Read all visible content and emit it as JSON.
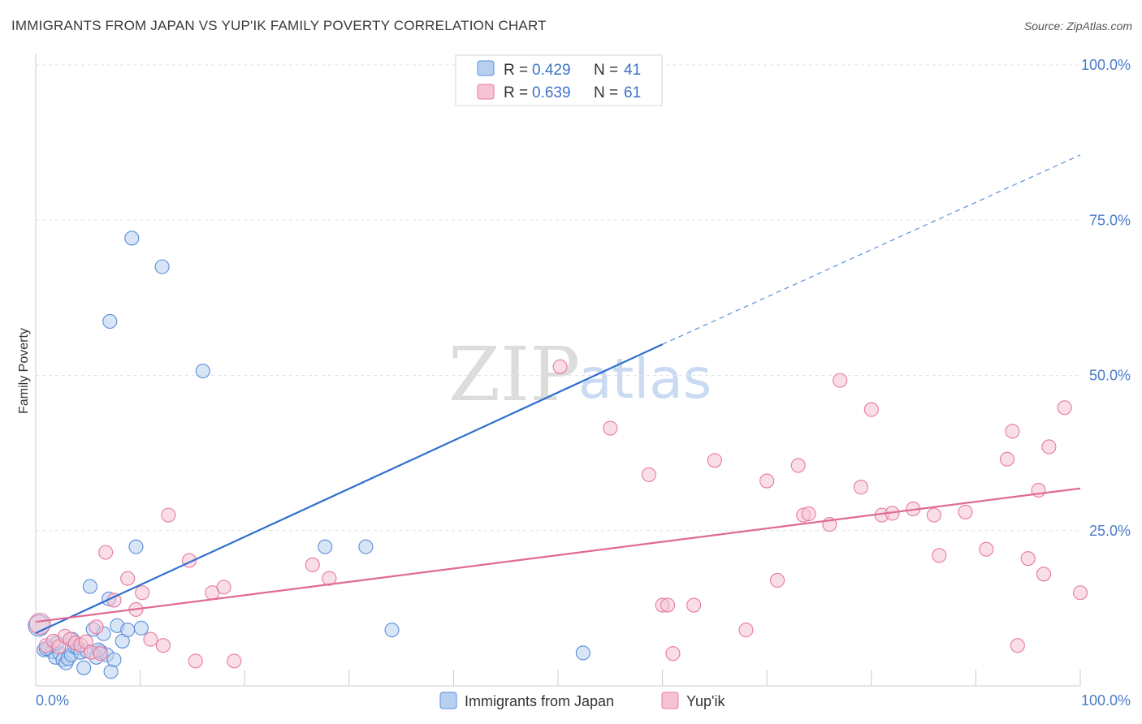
{
  "header": {
    "title": "IMMIGRANTS FROM JAPAN VS YUP'IK FAMILY POVERTY CORRELATION CHART",
    "source": "Source: ZipAtlas.com"
  },
  "watermark": {
    "zip": "ZIP",
    "atlas": "atlas"
  },
  "colors": {
    "japan": "#5b8ed8",
    "japan_fill": "#b8d0f0",
    "japan_line": "#2f6fce",
    "yupik": "#e7799e",
    "yupik_fill": "#f5c3d4",
    "yupik_line": "#e06a93",
    "tick": "#4a7cc9",
    "grid": "#e2e2e2"
  },
  "legend": {
    "rows": [
      {
        "r_label": "R = ",
        "r_value": "0.429",
        "n_label": "N = ",
        "n_value": "41"
      },
      {
        "r_label": "R = ",
        "r_value": "0.639",
        "n_label": "N = ",
        "n_value": "61"
      }
    ]
  },
  "chart_data": {
    "type": "scatter",
    "title": "IMMIGRANTS FROM JAPAN VS YUP'IK FAMILY POVERTY CORRELATION CHART",
    "xlabel": "",
    "ylabel": "Family Poverty",
    "xlim": [
      0,
      100
    ],
    "ylim": [
      0,
      100
    ],
    "x_ticks": [
      "0.0%",
      "100.0%"
    ],
    "y_ticks": [
      {
        "value": 25,
        "label": "25.0%"
      },
      {
        "value": 50,
        "label": "50.0%"
      },
      {
        "value": 75,
        "label": "75.0%"
      },
      {
        "value": 100,
        "label": "100.0%"
      }
    ],
    "grid": true,
    "legend_position": "top-center",
    "series": [
      {
        "name": "Immigrants from Japan",
        "stats": {
          "R": 0.429,
          "N": 41
        },
        "trend": {
          "x0": 0,
          "y0": 8.5,
          "x1": 60,
          "y1": 55,
          "dashed_to_x": 100,
          "dashed_to_y": 85.5
        },
        "points": [
          [
            0.3,
            9.7
          ],
          [
            0.8,
            5.8
          ],
          [
            1.2,
            6.1
          ],
          [
            1.6,
            5.5
          ],
          [
            1.9,
            4.6
          ],
          [
            2.3,
            5.2
          ],
          [
            2.6,
            4.2
          ],
          [
            2.9,
            3.7
          ],
          [
            3.1,
            4.4
          ],
          [
            3.4,
            5.0
          ],
          [
            3.7,
            6.3
          ],
          [
            4.0,
            6.1
          ],
          [
            4.3,
            5.4
          ],
          [
            4.6,
            2.9
          ],
          [
            4.9,
            5.6
          ],
          [
            5.2,
            16.0
          ],
          [
            5.5,
            9.1
          ],
          [
            5.8,
            4.6
          ],
          [
            6.2,
            5.5
          ],
          [
            6.5,
            8.4
          ],
          [
            6.8,
            5.0
          ],
          [
            7.0,
            14.0
          ],
          [
            7.2,
            2.3
          ],
          [
            7.5,
            4.2
          ],
          [
            7.1,
            58.7
          ],
          [
            7.8,
            9.7
          ],
          [
            8.3,
            7.2
          ],
          [
            8.8,
            9.0
          ],
          [
            9.2,
            72.1
          ],
          [
            9.6,
            22.4
          ],
          [
            10.1,
            9.3
          ],
          [
            12.1,
            67.5
          ],
          [
            16.0,
            50.7
          ],
          [
            27.7,
            22.4
          ],
          [
            31.6,
            22.4
          ],
          [
            34.1,
            9.0
          ],
          [
            52.4,
            5.3
          ],
          [
            1.0,
            6.0
          ],
          [
            2.0,
            6.9
          ],
          [
            3.5,
            7.5
          ],
          [
            6.0,
            5.8
          ]
        ]
      },
      {
        "name": "Yup'ik",
        "stats": {
          "R": 0.639,
          "N": 61
        },
        "trend": {
          "x0": 0,
          "y0": 10.3,
          "x1": 100,
          "y1": 31.8
        },
        "points": [
          [
            0.4,
            10.0
          ],
          [
            1.0,
            6.5
          ],
          [
            1.7,
            7.2
          ],
          [
            2.2,
            6.3
          ],
          [
            2.8,
            8.0
          ],
          [
            3.3,
            7.5
          ],
          [
            3.8,
            6.9
          ],
          [
            4.3,
            6.6
          ],
          [
            4.8,
            7.1
          ],
          [
            5.3,
            5.4
          ],
          [
            5.8,
            9.5
          ],
          [
            6.2,
            5.2
          ],
          [
            6.7,
            21.5
          ],
          [
            7.5,
            13.8
          ],
          [
            8.8,
            17.3
          ],
          [
            9.6,
            12.3
          ],
          [
            10.2,
            15.0
          ],
          [
            11.0,
            7.5
          ],
          [
            12.2,
            6.5
          ],
          [
            12.7,
            27.5
          ],
          [
            14.7,
            20.2
          ],
          [
            15.3,
            4.0
          ],
          [
            16.9,
            15.0
          ],
          [
            18.0,
            15.9
          ],
          [
            19.0,
            4.0
          ],
          [
            26.5,
            19.5
          ],
          [
            28.1,
            17.3
          ],
          [
            50.2,
            51.4
          ],
          [
            55.0,
            41.5
          ],
          [
            58.7,
            34.0
          ],
          [
            60.0,
            13.0
          ],
          [
            60.5,
            13.0
          ],
          [
            61.0,
            5.2
          ],
          [
            63.0,
            13.0
          ],
          [
            65.0,
            36.3
          ],
          [
            68.0,
            9.0
          ],
          [
            70.0,
            33.0
          ],
          [
            71.0,
            17.0
          ],
          [
            73.0,
            35.5
          ],
          [
            73.5,
            27.5
          ],
          [
            74.0,
            27.7
          ],
          [
            76.0,
            26.0
          ],
          [
            77.0,
            49.2
          ],
          [
            79.0,
            32.0
          ],
          [
            80.0,
            44.5
          ],
          [
            81.0,
            27.5
          ],
          [
            82.0,
            27.8
          ],
          [
            84.0,
            28.5
          ],
          [
            86.0,
            27.5
          ],
          [
            86.5,
            21.0
          ],
          [
            89.0,
            28.0
          ],
          [
            91.0,
            22.0
          ],
          [
            93.0,
            36.5
          ],
          [
            93.5,
            41.0
          ],
          [
            94.0,
            6.5
          ],
          [
            95.0,
            20.5
          ],
          [
            96.0,
            31.5
          ],
          [
            96.5,
            18.0
          ],
          [
            97.0,
            38.5
          ],
          [
            98.5,
            44.8
          ],
          [
            100.0,
            15.0
          ]
        ]
      }
    ]
  },
  "bottom_legend": {
    "items": [
      {
        "label": "Immigrants from Japan"
      },
      {
        "label": "Yup'ik"
      }
    ]
  }
}
